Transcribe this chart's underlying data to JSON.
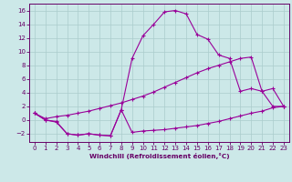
{
  "xlabel": "Windchill (Refroidissement éolien,°C)",
  "background_color": "#cce8e8",
  "line_color": "#990099",
  "grid_color": "#aacccc",
  "xlim": [
    -0.5,
    23.5
  ],
  "ylim": [
    -3.2,
    17.0
  ],
  "yticks": [
    -2,
    0,
    2,
    4,
    6,
    8,
    10,
    12,
    14,
    16
  ],
  "xticks": [
    0,
    1,
    2,
    3,
    4,
    5,
    6,
    7,
    8,
    9,
    10,
    11,
    12,
    13,
    14,
    15,
    16,
    17,
    18,
    19,
    20,
    21,
    22,
    23
  ],
  "line_peak_x": [
    0,
    1,
    2,
    3,
    4,
    5,
    6,
    7,
    8,
    9,
    10,
    11,
    12,
    13,
    14,
    15,
    16,
    17,
    18,
    19,
    20,
    21,
    22,
    23
  ],
  "line_peak_y": [
    1.0,
    0.0,
    -0.3,
    -2.0,
    -2.2,
    -2.0,
    -2.2,
    -2.3,
    1.5,
    9.0,
    12.3,
    14.0,
    15.8,
    16.0,
    15.5,
    12.5,
    11.8,
    9.5,
    9.0,
    4.2,
    4.6,
    4.2,
    2.0,
    2.0
  ],
  "line_diag_x": [
    0,
    1,
    2,
    3,
    4,
    5,
    6,
    7,
    8,
    9,
    10,
    11,
    12,
    13,
    14,
    15,
    16,
    17,
    18,
    19,
    20,
    21,
    22,
    23
  ],
  "line_diag_y": [
    1.0,
    0.2,
    0.5,
    0.7,
    1.0,
    1.3,
    1.7,
    2.1,
    2.5,
    3.0,
    3.5,
    4.1,
    4.8,
    5.5,
    6.2,
    6.9,
    7.5,
    8.0,
    8.5,
    9.0,
    9.2,
    4.2,
    4.6,
    2.0
  ],
  "line_flat_x": [
    0,
    1,
    2,
    3,
    4,
    5,
    6,
    7,
    8,
    9,
    10,
    11,
    12,
    13,
    14,
    15,
    16,
    17,
    18,
    19,
    20,
    21,
    22,
    23
  ],
  "line_flat_y": [
    1.0,
    0.0,
    -0.2,
    -2.0,
    -2.2,
    -2.0,
    -2.2,
    -2.3,
    1.5,
    -1.8,
    -1.6,
    -1.5,
    -1.4,
    -1.2,
    -1.0,
    -0.8,
    -0.5,
    -0.2,
    0.2,
    0.6,
    1.0,
    1.3,
    1.8,
    2.0
  ]
}
